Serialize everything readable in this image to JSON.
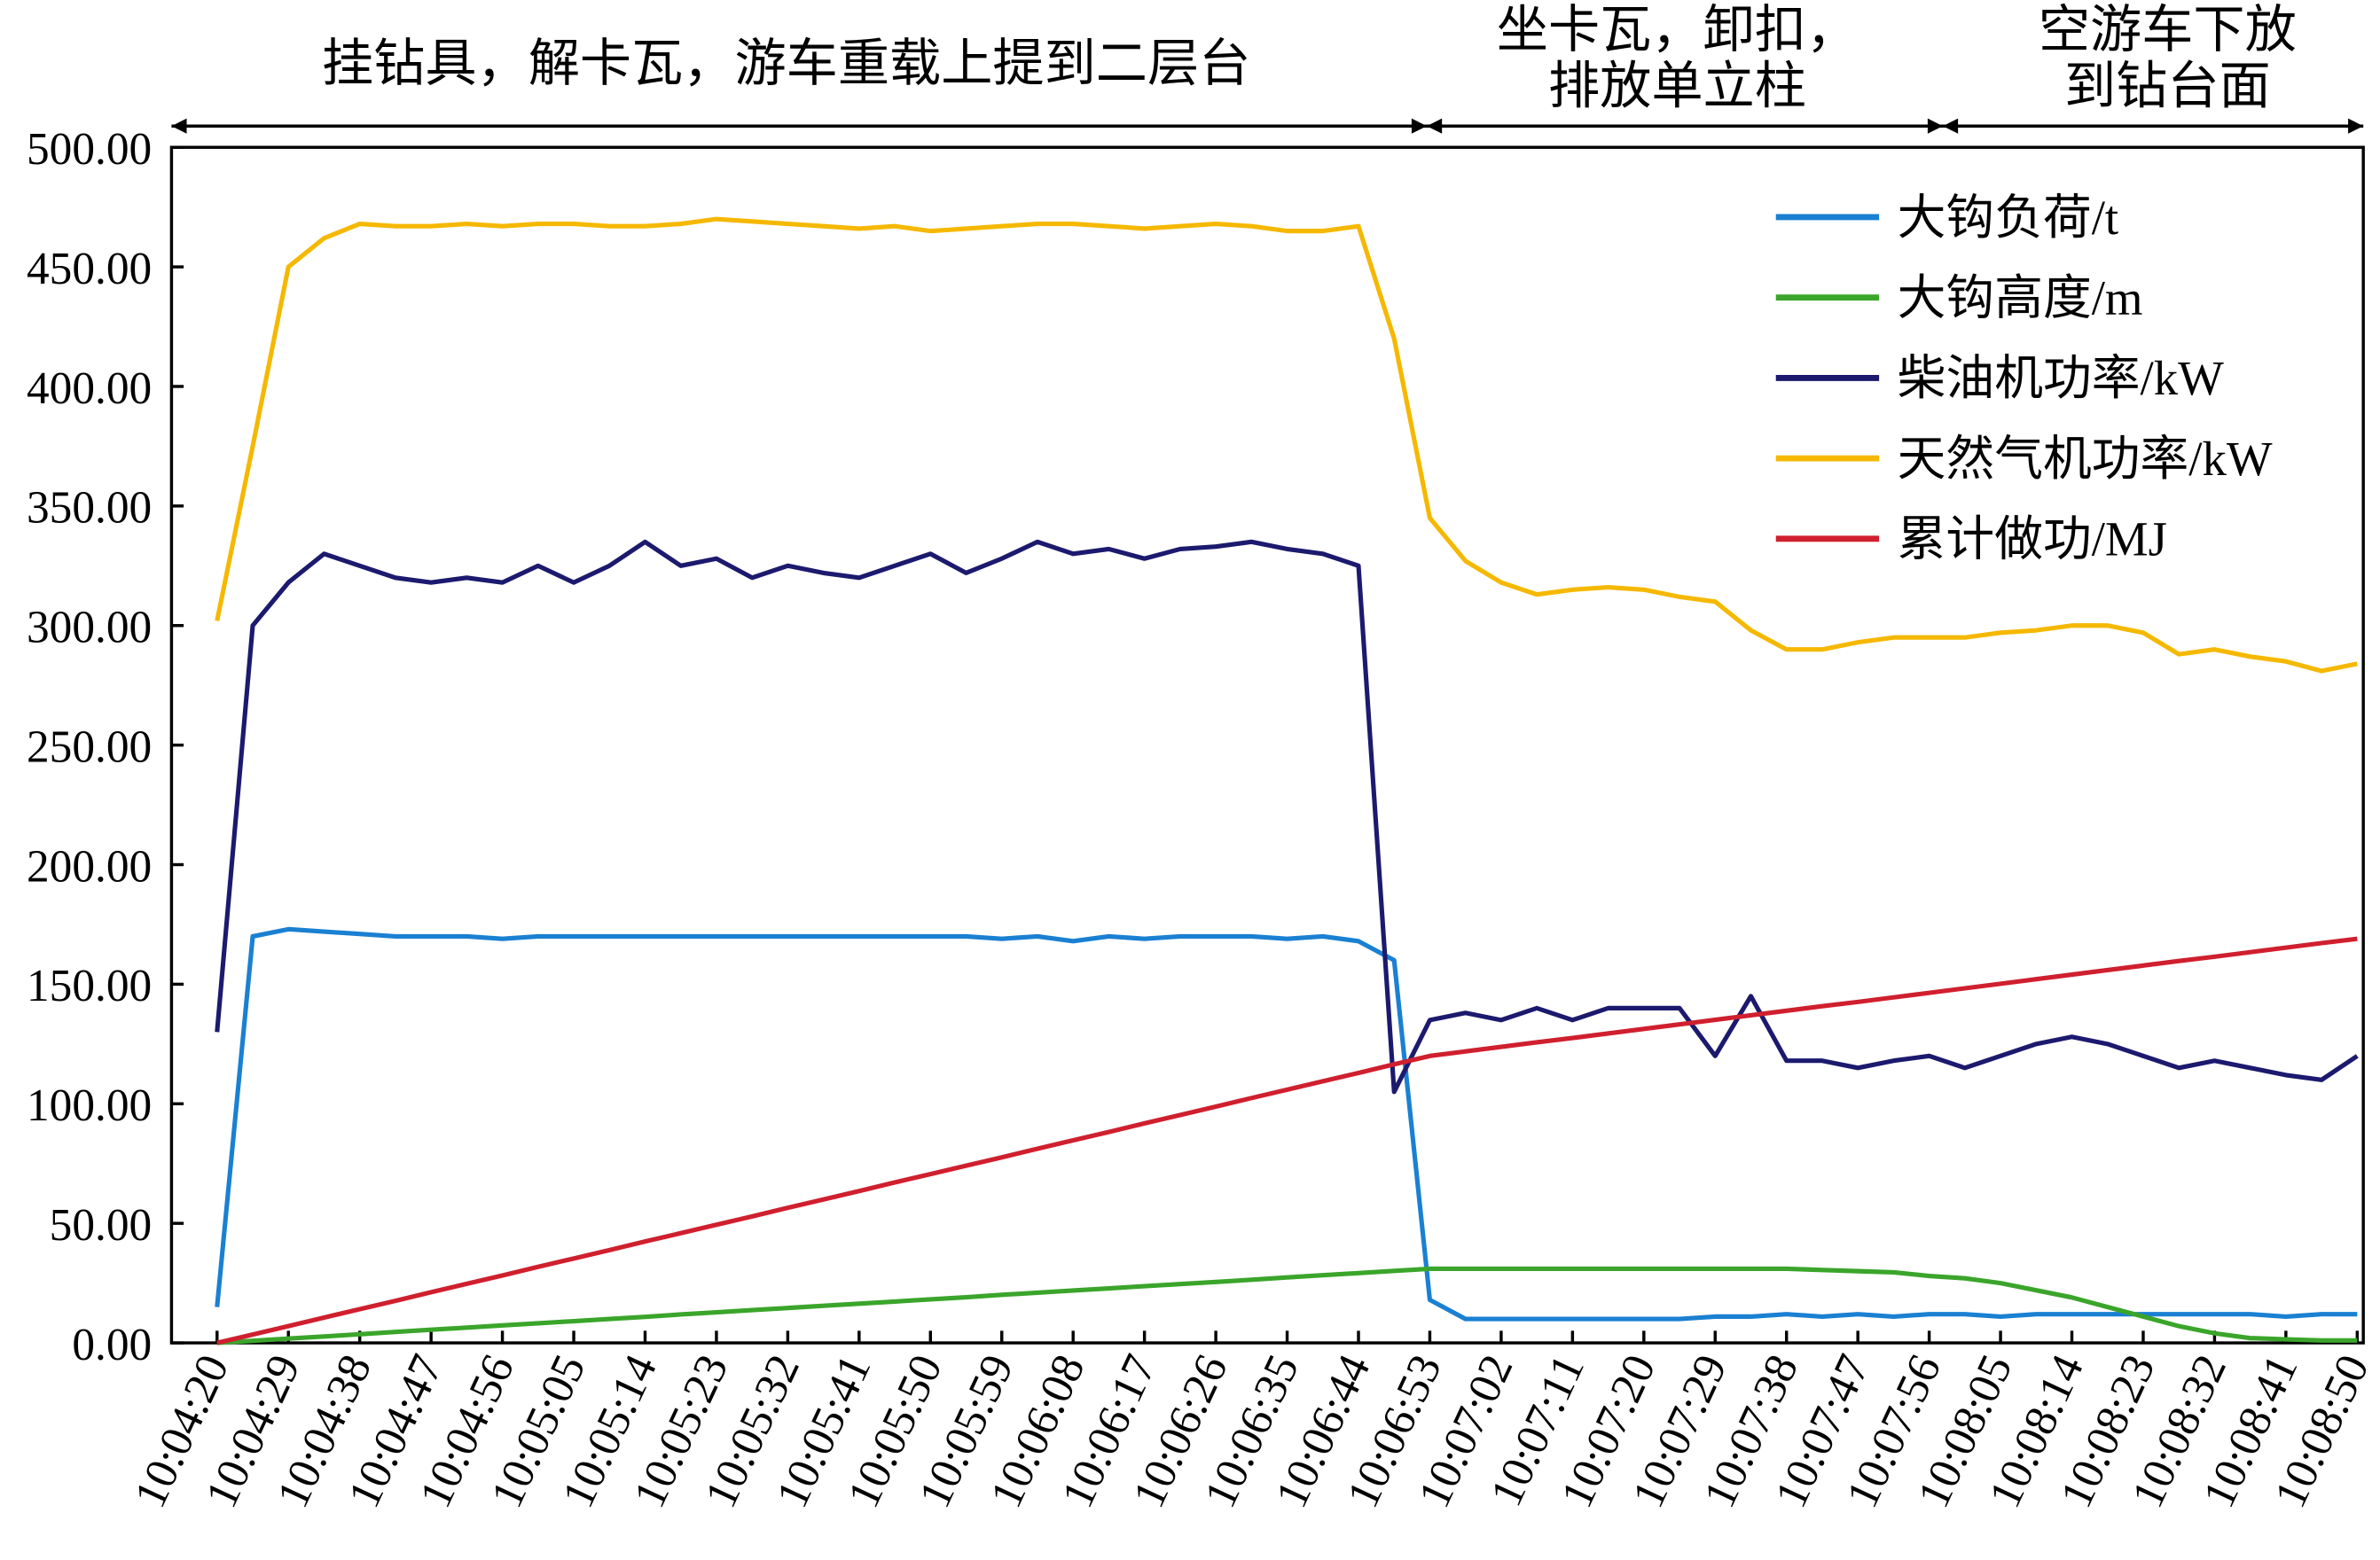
{
  "chart_data": {
    "type": "line",
    "annotations": [
      {
        "lines": [
          "挂钻具，解卡瓦，游车重载上提到二层台"
        ]
      },
      {
        "lines": [
          "坐卡瓦，卸扣，",
          "排放单立柱"
        ]
      },
      {
        "lines": [
          "空游车下放",
          "到钻台面"
        ]
      }
    ],
    "categories": [
      "10:04:20",
      null,
      "10:04:29",
      null,
      "10:04:38",
      null,
      "10:04:47",
      null,
      "10:04:56",
      null,
      "10:05:05",
      null,
      "10:05:14",
      null,
      "10:05:23",
      null,
      "10:05:32",
      null,
      "10:05:41",
      null,
      "10:05:50",
      null,
      "10:05:59",
      null,
      "10:06:08",
      null,
      "10:06:17",
      null,
      "10:06:26",
      null,
      "10:06:35",
      null,
      "10:06:44",
      null,
      "10:06:53",
      null,
      "10:07:02",
      null,
      "10:07:11",
      null,
      "10:07:20",
      null,
      "10:07:29",
      null,
      "10:07:38",
      null,
      "10:07:47",
      null,
      "10:07:56",
      null,
      "10:08:05",
      null,
      "10:08:14",
      null,
      "10:08:23",
      null,
      "10:08:32",
      null,
      "10:08:41",
      null,
      "10:08:50"
    ],
    "series": [
      {
        "name": "大钩负荷/t",
        "color": "#1a80d2",
        "values": [
          15,
          170,
          173,
          172,
          171,
          170,
          170,
          170,
          169,
          170,
          170,
          170,
          170,
          170,
          170,
          170,
          170,
          170,
          170,
          170,
          170,
          170,
          169,
          170,
          168,
          170,
          169,
          170,
          170,
          170,
          169,
          170,
          168,
          160,
          18,
          10,
          10,
          10,
          10,
          10,
          10,
          10,
          11,
          11,
          12,
          11,
          12,
          11,
          12,
          12,
          11,
          12,
          12,
          12,
          12,
          12,
          12,
          12,
          11,
          12,
          12
        ]
      },
      {
        "name": "大钩高度/m",
        "color": "#3aa52a",
        "values": [
          0,
          0.9,
          1.8,
          2.7,
          3.6,
          4.6,
          5.5,
          6.4,
          7.3,
          8.2,
          9.1,
          10,
          10.9,
          11.9,
          12.8,
          13.7,
          14.6,
          15.5,
          16.4,
          17.3,
          18.2,
          19.1,
          20.1,
          21,
          21.9,
          22.8,
          23.7,
          24.6,
          25.5,
          26.4,
          27.4,
          28.3,
          29.2,
          30.1,
          31,
          31,
          31,
          31,
          31,
          31,
          31,
          31,
          31,
          31,
          31,
          30.5,
          30,
          29.5,
          28,
          27,
          25,
          22,
          19,
          15,
          11,
          7,
          4,
          2,
          1.5,
          1,
          1
        ]
      },
      {
        "name": "柴油机功率/kW",
        "color": "#1c1a6e",
        "values": [
          130,
          300,
          318,
          330,
          325,
          320,
          318,
          320,
          318,
          325,
          318,
          325,
          335,
          325,
          328,
          320,
          325,
          322,
          320,
          325,
          330,
          322,
          328,
          335,
          330,
          332,
          328,
          332,
          333,
          335,
          332,
          330,
          325,
          105,
          135,
          138,
          135,
          140,
          135,
          140,
          140,
          140,
          120,
          145,
          118,
          118,
          115,
          118,
          120,
          115,
          120,
          125,
          128,
          125,
          120,
          115,
          118,
          115,
          112,
          110,
          120
        ]
      },
      {
        "name": "天然气机功率/kW",
        "color": "#f5b800",
        "values": [
          302,
          375,
          450,
          462,
          468,
          467,
          467,
          468,
          467,
          468,
          468,
          467,
          467,
          468,
          470,
          469,
          468,
          467,
          466,
          467,
          465,
          466,
          467,
          468,
          468,
          467,
          466,
          467,
          468,
          467,
          465,
          465,
          467,
          420,
          345,
          327,
          318,
          313,
          315,
          316,
          315,
          312,
          310,
          298,
          290,
          290,
          293,
          295,
          295,
          295,
          297,
          298,
          300,
          300,
          297,
          288,
          290,
          287,
          285,
          281,
          284
        ]
      },
      {
        "name": "累计做功/MJ",
        "color": "#d01f2e",
        "values": [
          0,
          3.5,
          7,
          10.6,
          14.1,
          17.6,
          21.2,
          24.7,
          28.2,
          31.8,
          35.3,
          38.8,
          42.4,
          45.9,
          49.4,
          52.9,
          56.5,
          60,
          63.5,
          67.1,
          70.6,
          74.1,
          77.6,
          81.2,
          84.7,
          88.2,
          91.8,
          95.3,
          98.8,
          102.4,
          105.9,
          109.4,
          112.9,
          116.5,
          120,
          121.9,
          123.8,
          125.7,
          127.5,
          129.4,
          131.3,
          133.2,
          135.1,
          137,
          138.9,
          140.8,
          142.6,
          144.5,
          146.4,
          148.3,
          150.2,
          152.1,
          154,
          155.9,
          157.8,
          159.7,
          161.5,
          163.4,
          165.3,
          167.2,
          169
        ]
      }
    ],
    "ylim": [
      0,
      500
    ],
    "yticks": [
      {
        "value": 0,
        "label": "0.00"
      },
      {
        "value": 50,
        "label": "50.00"
      },
      {
        "value": 100,
        "label": "100.00"
      },
      {
        "value": 150,
        "label": "150.00"
      },
      {
        "value": 200,
        "label": "200.00"
      },
      {
        "value": 250,
        "label": "250.00"
      },
      {
        "value": 300,
        "label": "300.00"
      },
      {
        "value": 350,
        "label": "350.00"
      },
      {
        "value": 400,
        "label": "400.00"
      },
      {
        "value": 450,
        "label": "450.00"
      },
      {
        "value": 500,
        "label": "500.00"
      }
    ],
    "legend": "upper right"
  }
}
